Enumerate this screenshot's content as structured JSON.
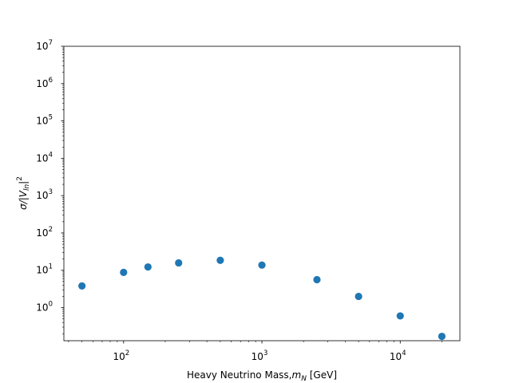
{
  "chart_data": {
    "type": "scatter",
    "title": "",
    "xlabel": "Heavy Neutrino Mass,",
    "xlabel_symbol": "m",
    "xlabel_symbol_sub": "N",
    "xlabel_unit": " [GeV]",
    "ylabel": "σ/|V",
    "ylabel_sub": "ln",
    "ylabel_tail": "|",
    "ylabel_sup": "2",
    "xscale": "log",
    "yscale": "log",
    "xlim": [
      37,
      27000
    ],
    "ylim": [
      0.13,
      10000000
    ],
    "grid": false,
    "marker_color": "#1f77b4",
    "x_ticks": [
      {
        "value": 100,
        "base": "10",
        "exp": "2"
      },
      {
        "value": 1000,
        "base": "10",
        "exp": "3"
      },
      {
        "value": 10000,
        "base": "10",
        "exp": "4"
      }
    ],
    "y_ticks": [
      {
        "value": 1,
        "base": "10",
        "exp": "0"
      },
      {
        "value": 10,
        "base": "10",
        "exp": "1"
      },
      {
        "value": 100,
        "base": "10",
        "exp": "2"
      },
      {
        "value": 1000,
        "base": "10",
        "exp": "3"
      },
      {
        "value": 10000,
        "base": "10",
        "exp": "4"
      },
      {
        "value": 100000,
        "base": "10",
        "exp": "5"
      },
      {
        "value": 1000000,
        "base": "10",
        "exp": "6"
      },
      {
        "value": 10000000,
        "base": "10",
        "exp": "7"
      }
    ],
    "points": [
      {
        "x": 50,
        "y": 3.8
      },
      {
        "x": 100,
        "y": 8.8
      },
      {
        "x": 150,
        "y": 12.3
      },
      {
        "x": 250,
        "y": 15.8
      },
      {
        "x": 500,
        "y": 18.5
      },
      {
        "x": 1000,
        "y": 13.8
      },
      {
        "x": 2500,
        "y": 5.6
      },
      {
        "x": 5000,
        "y": 2.0
      },
      {
        "x": 10000,
        "y": 0.6
      },
      {
        "x": 20000,
        "y": 0.17
      }
    ]
  }
}
